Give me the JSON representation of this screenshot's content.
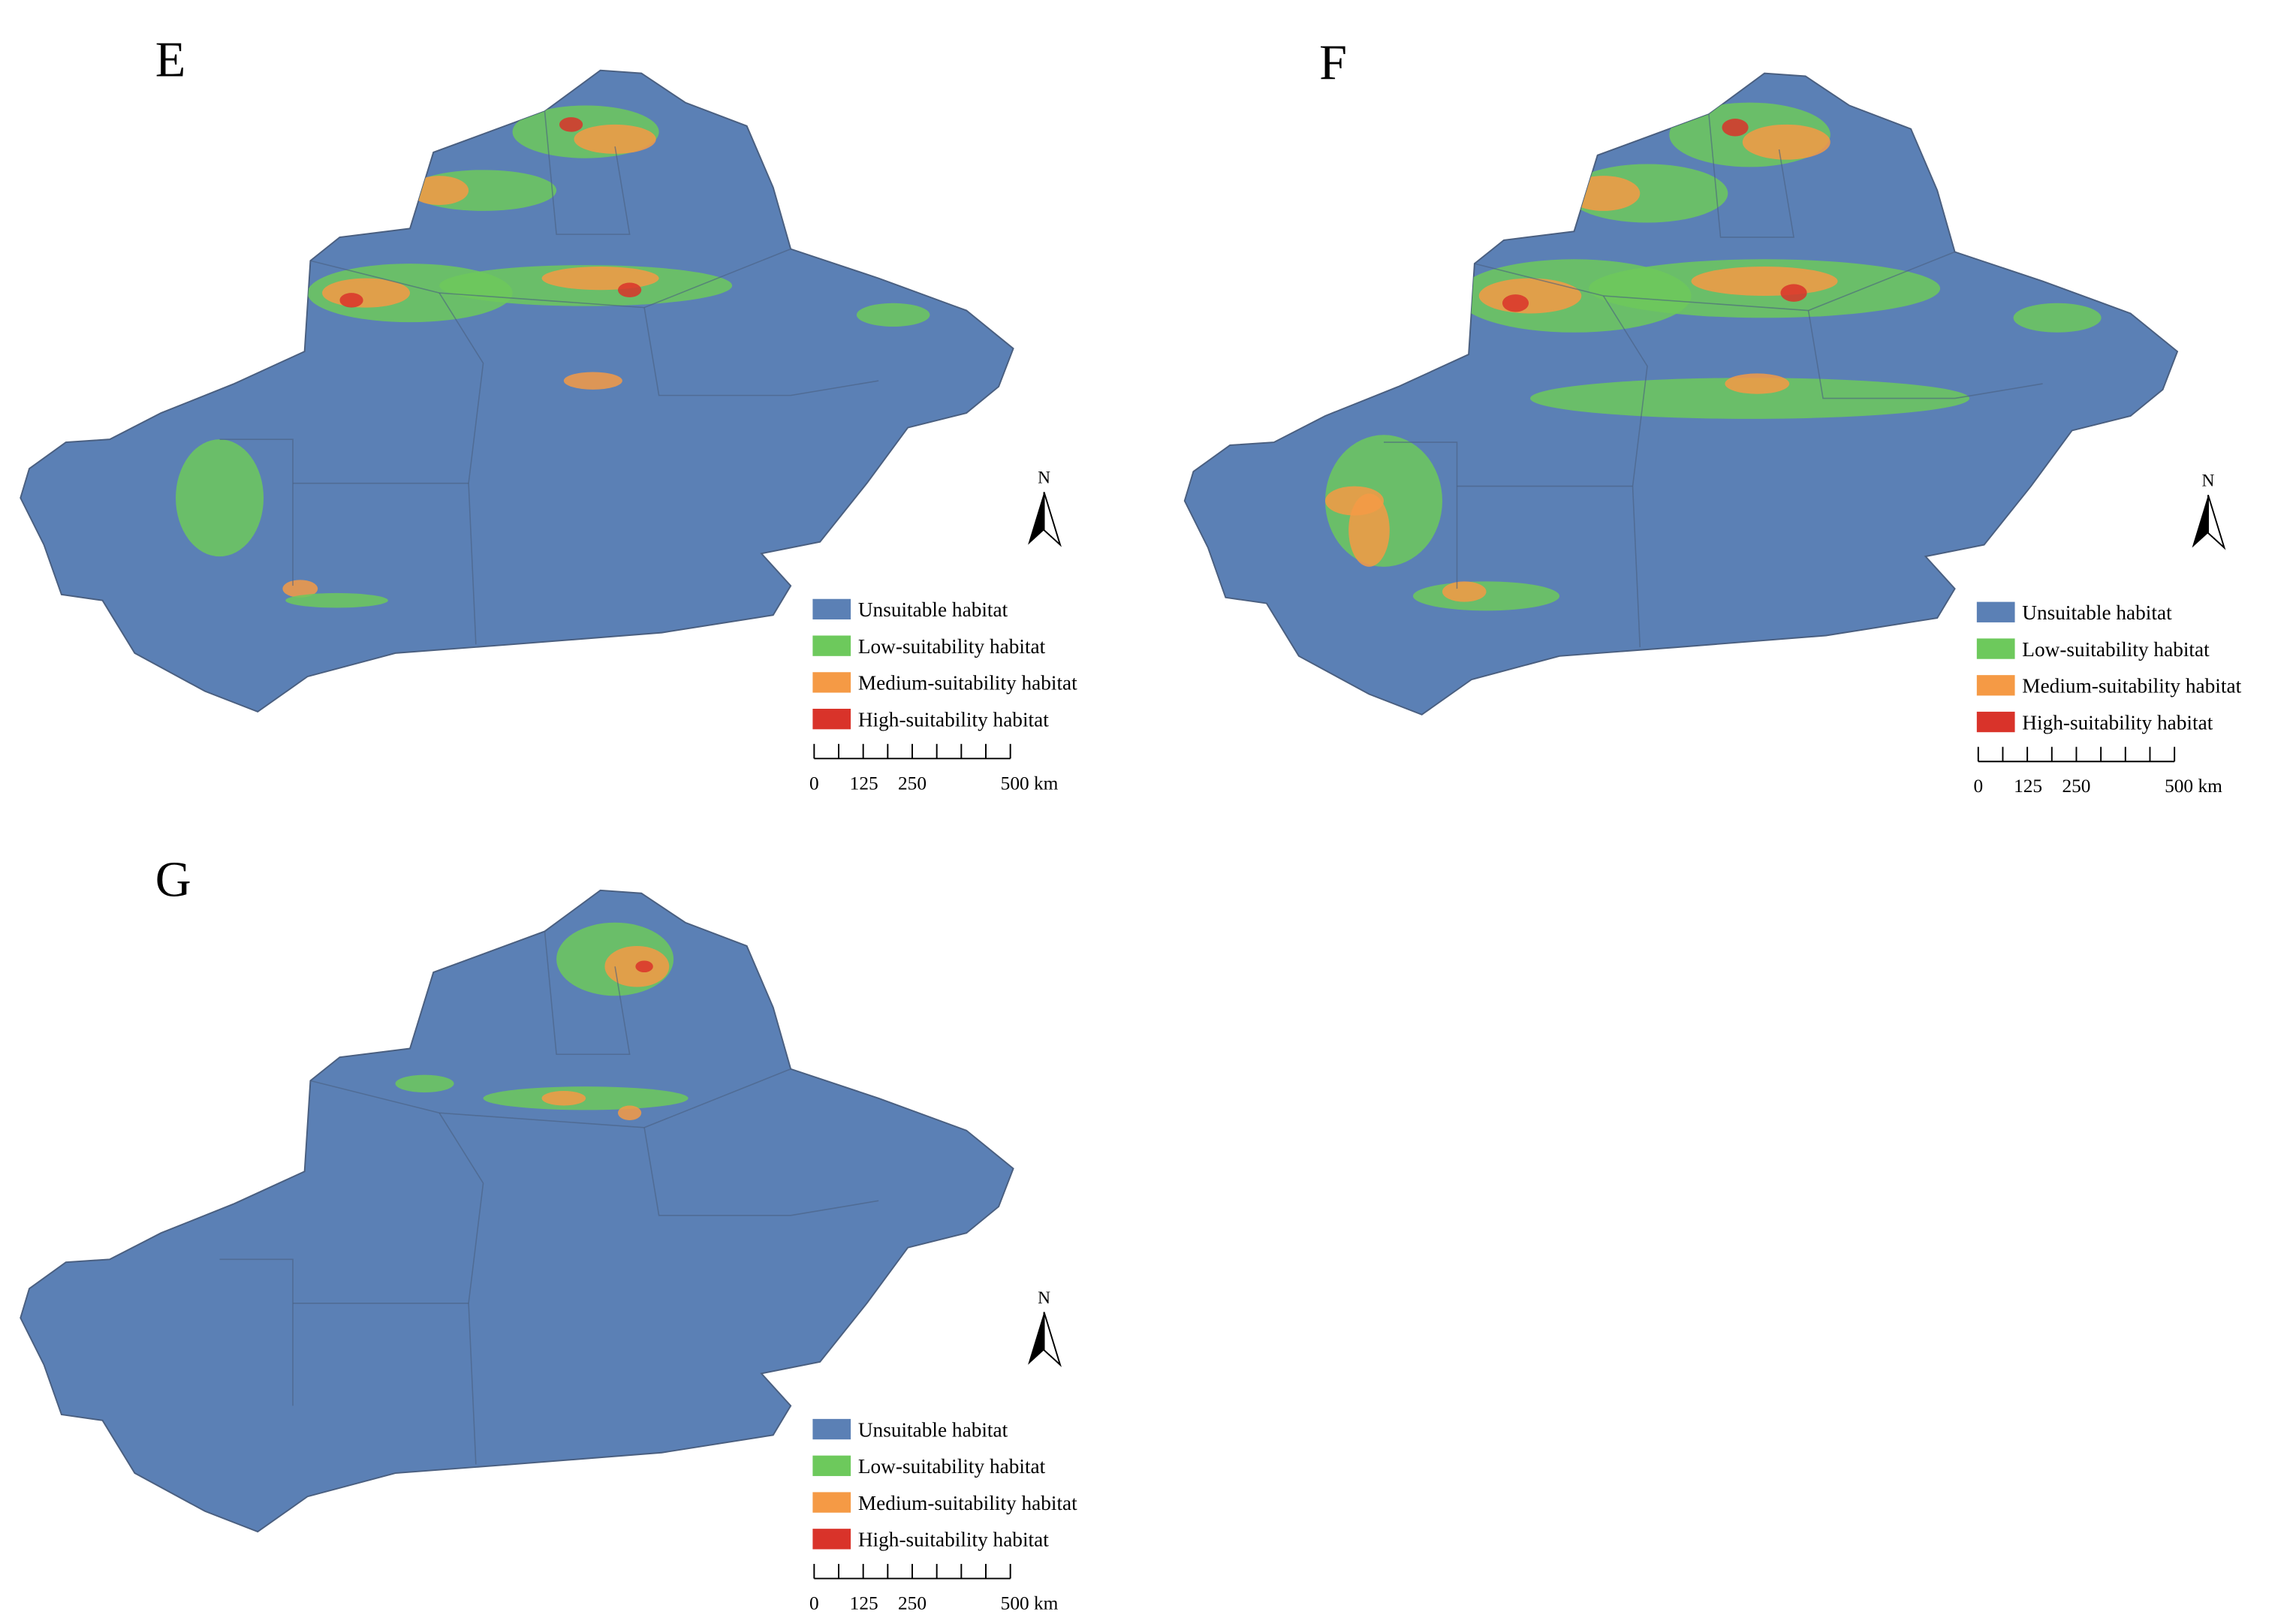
{
  "panels": [
    {
      "label": "E",
      "north": "N",
      "legend": [
        {
          "text": "Unsuitable habitat",
          "color": "#5b80b5"
        },
        {
          "text": "Low-suitability habitat",
          "color": "#6dc95c"
        },
        {
          "text": "Medium-suitability habitat",
          "color": "#f59a45"
        },
        {
          "text": "High-suitability habitat",
          "color": "#d9332a"
        }
      ],
      "scale": [
        "0",
        "125",
        "250",
        "500 km"
      ]
    },
    {
      "label": "F",
      "north": "N",
      "legend": [
        {
          "text": "Unsuitable habitat",
          "color": "#5b80b5"
        },
        {
          "text": "Low-suitability habitat",
          "color": "#6dc95c"
        },
        {
          "text": "Medium-suitability habitat",
          "color": "#f59a45"
        },
        {
          "text": "High-suitability habitat",
          "color": "#d9332a"
        }
      ],
      "scale": [
        "0",
        "125",
        "250",
        "500 km"
      ]
    },
    {
      "label": "G",
      "north": "N",
      "legend": [
        {
          "text": "Unsuitable habitat",
          "color": "#5b80b5"
        },
        {
          "text": "Low-suitability habitat",
          "color": "#6dc95c"
        },
        {
          "text": "Medium-suitability habitat",
          "color": "#f59a45"
        },
        {
          "text": "High-suitability habitat",
          "color": "#d9332a"
        }
      ],
      "scale": [
        "0",
        "125",
        "250",
        "500 km"
      ]
    }
  ]
}
